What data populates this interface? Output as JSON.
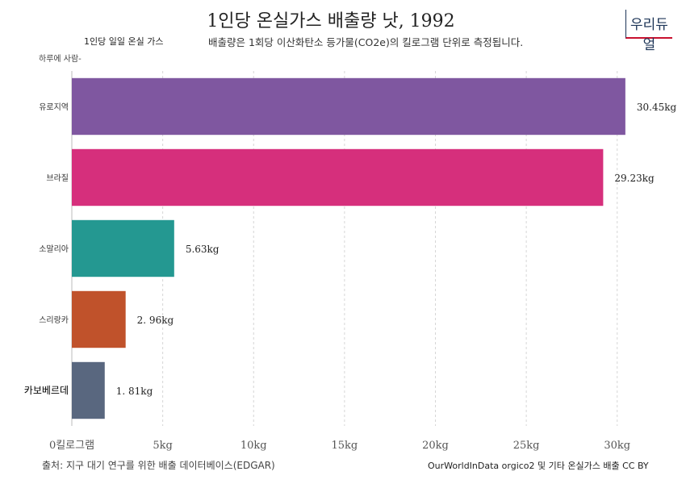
{
  "header": {
    "title": "1인당 온실가스 배출량 낫, 1992",
    "subtitle_left": "1인당 일일 온실 가스",
    "subtitle_right": "배출량은 1회당 이산화탄소 등가물(CO2e)의 킬로그램 단위로 측정됩니다.",
    "unit_note": "하루에 사람-",
    "logo": "우리듀얼"
  },
  "footer": {
    "source": "출처: 지구 대기 연구를 위한 배출 데이터베이스(EDGAR)",
    "credit": "OurWorldInData orgico2 및 기타 온실가스 배출 CC BY"
  },
  "chart_data": {
    "type": "bar",
    "orientation": "horizontal",
    "categories": [
      "유로지역",
      "브라질",
      "소말리아",
      "스리랑카",
      "카보베르데"
    ],
    "values": [
      30.45,
      29.23,
      5.63,
      2.96,
      1.81
    ],
    "value_labels": [
      "30.45kg",
      "29.23kg",
      "5.63kg",
      "2.  96kg",
      "1.  81kg"
    ],
    "colors": [
      "#7f57a0",
      "#d62f7c",
      "#249891",
      "#c0522b",
      "#59677f"
    ],
    "xlim": [
      0,
      30.5
    ],
    "x_ticks": [
      0,
      5,
      10,
      15,
      20,
      25,
      30
    ],
    "x_tick_labels": [
      "0킬로그램",
      "5kg",
      "10kg",
      "15kg",
      "20kg",
      "25kg",
      "30kg"
    ],
    "grid": true
  }
}
